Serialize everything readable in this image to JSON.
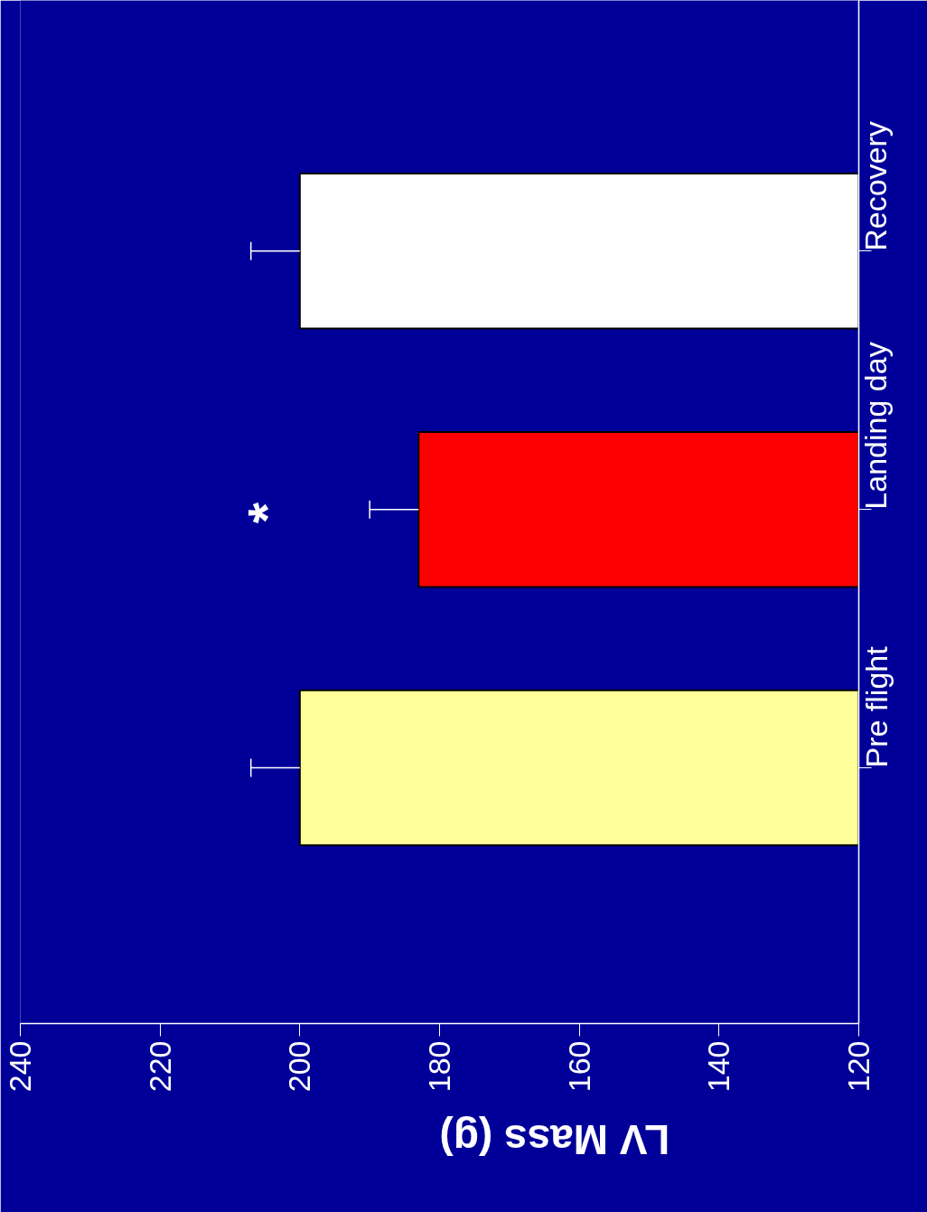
{
  "chart_data": {
    "type": "bar",
    "orientation": "horizontal",
    "xlabel": "LV Mass (g)",
    "categories": [
      "Recovery",
      "Landing day",
      "Pre flight"
    ],
    "values": [
      200,
      183,
      200
    ],
    "colors": [
      "#ffffff",
      "#ff0000",
      "#ffff99"
    ],
    "errors": [
      [
        200,
        207
      ],
      [
        183,
        190
      ],
      [
        200,
        207
      ]
    ],
    "xlim": [
      240,
      120
    ],
    "xticks": [
      120,
      140,
      160,
      180,
      200,
      220,
      240
    ],
    "annotations": [
      "*"
    ],
    "grid": false
  }
}
